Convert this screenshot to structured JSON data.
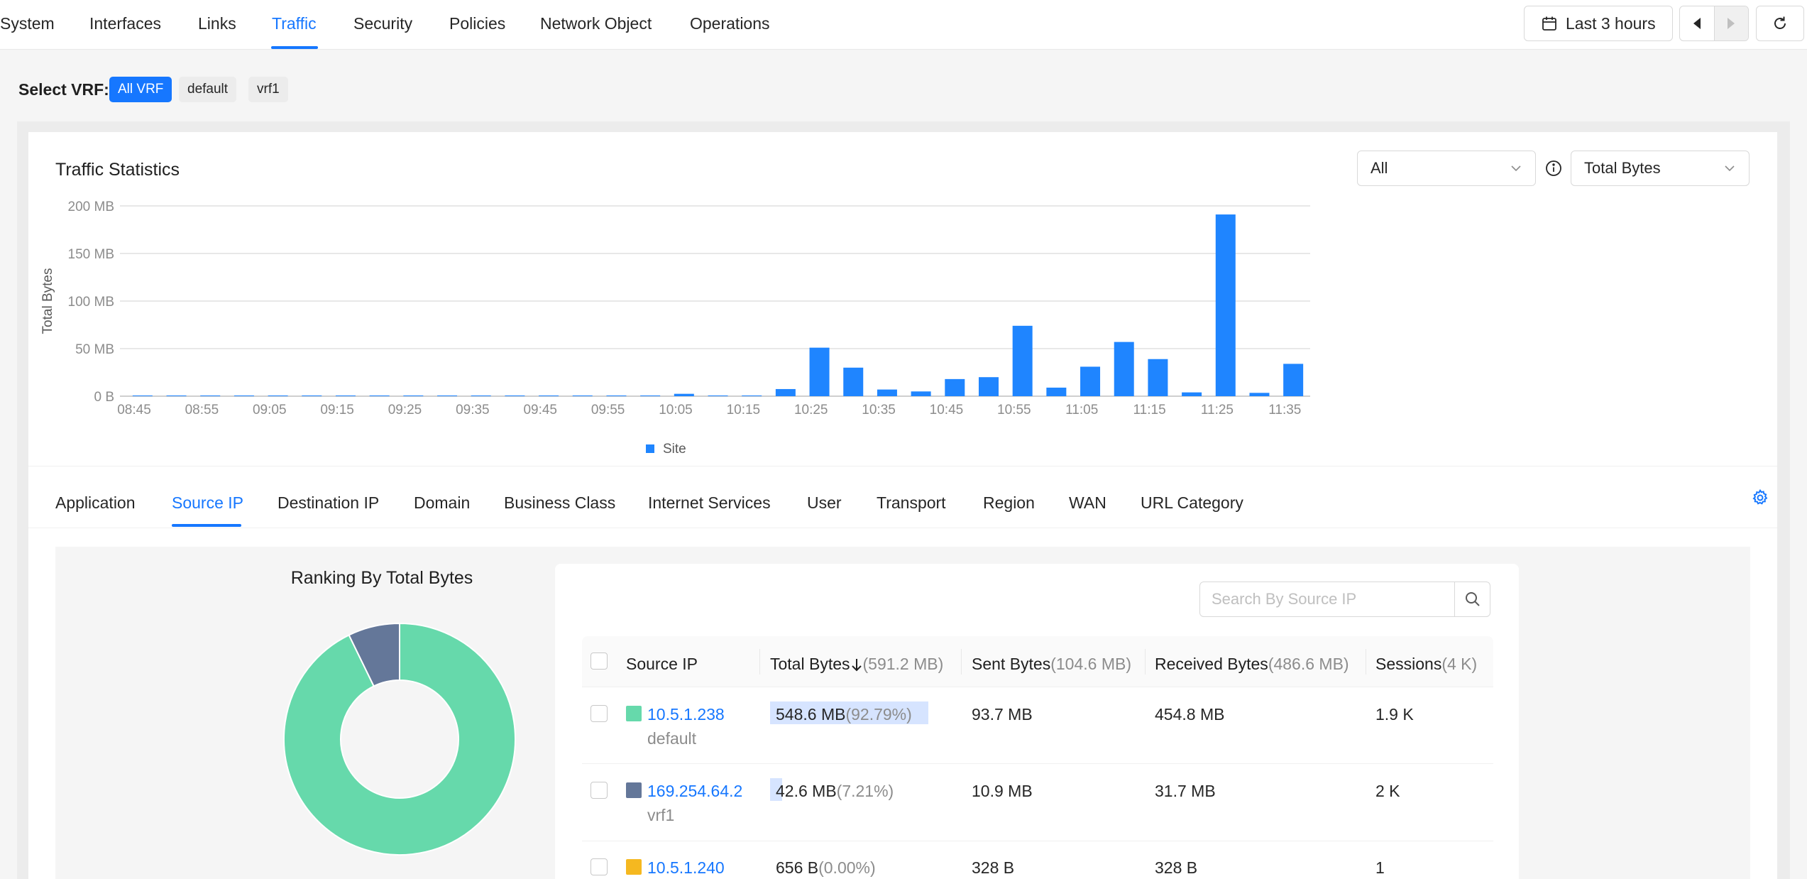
{
  "nav": {
    "tabs": [
      "System",
      "Interfaces",
      "Links",
      "Traffic",
      "Security",
      "Policies",
      "Network Object",
      "Operations"
    ],
    "active": "Traffic"
  },
  "toolbar": {
    "time_range": "Last 3 hours"
  },
  "vrf": {
    "label": "Select VRF:",
    "options": [
      "All VRF",
      "default",
      "vrf1"
    ],
    "selected": "All VRF"
  },
  "stats": {
    "title": "Traffic Statistics",
    "filter_select": "All",
    "metric_select": "Total Bytes"
  },
  "chart_data": {
    "type": "bar",
    "title": "Traffic Statistics",
    "ylabel": "Total Bytes",
    "ylim": [
      0,
      200
    ],
    "yunit": "MB",
    "yticks": [
      "0 B",
      "50 MB",
      "100 MB",
      "150 MB",
      "200 MB"
    ],
    "xticks": [
      "08:45",
      "08:55",
      "09:05",
      "09:15",
      "09:25",
      "09:35",
      "09:45",
      "09:55",
      "10:05",
      "10:15",
      "10:25",
      "10:35",
      "10:45",
      "10:55",
      "11:05",
      "11:15",
      "11:25",
      "11:35"
    ],
    "categories": [
      "08:45",
      "08:50",
      "08:55",
      "09:00",
      "09:05",
      "09:10",
      "09:15",
      "09:20",
      "09:25",
      "09:30",
      "09:35",
      "09:40",
      "09:45",
      "09:50",
      "09:55",
      "10:00",
      "10:05",
      "10:10",
      "10:15",
      "10:20",
      "10:25",
      "10:30",
      "10:35",
      "10:40",
      "10:45",
      "10:50",
      "10:55",
      "11:00",
      "11:05",
      "11:10",
      "11:15",
      "11:20",
      "11:25",
      "11:30",
      "11:35"
    ],
    "series": [
      {
        "name": "Site",
        "color": "#1f85ff",
        "values": [
          0.3,
          0.3,
          0.3,
          0.3,
          0.3,
          0.3,
          0.3,
          0.3,
          0.3,
          0.3,
          0.3,
          0.3,
          0.4,
          0.5,
          0.5,
          0.4,
          2.5,
          0.5,
          0.3,
          7.5,
          51,
          30,
          7,
          5,
          18,
          20,
          74,
          9,
          31,
          57,
          39,
          4,
          191,
          3.5,
          34
        ]
      }
    ],
    "legend": "bottom"
  },
  "subtabs": {
    "items": [
      "Application",
      "Source IP",
      "Destination IP",
      "Domain",
      "Business Class",
      "Internet Services",
      "User",
      "Transport",
      "Region",
      "WAN",
      "URL Category"
    ],
    "active": "Source IP"
  },
  "ranking": {
    "title": "Ranking By Total Bytes",
    "donut": [
      {
        "label": "10.5.1.238",
        "value": 92.79,
        "color": "#66d9ab"
      },
      {
        "label": "169.254.64.2",
        "value": 7.21,
        "color": "#647799"
      },
      {
        "label": "10.5.1.240",
        "value": 0.0,
        "color": "#f5b820"
      }
    ]
  },
  "table": {
    "search_placeholder": "Search By Source IP",
    "columns": {
      "source_ip": "Source IP",
      "total": "Total Bytes",
      "total_sum": "(591.2 MB)",
      "sent": "Sent Bytes",
      "sent_sum": "(104.6 MB)",
      "received": "Received Bytes",
      "received_sum": "(486.6 MB)",
      "sessions": "Sessions",
      "sessions_sum": "(4 K)"
    },
    "rows": [
      {
        "ip": "10.5.1.238",
        "vrf": "default",
        "color": "#66d9ab",
        "total": "548.6 MB",
        "pct": "(92.79%)",
        "share": 0.9279,
        "sent": "93.7 MB",
        "received": "454.8 MB",
        "sessions": "1.9 K"
      },
      {
        "ip": "169.254.64.2",
        "vrf": "vrf1",
        "color": "#647799",
        "total": "42.6 MB",
        "pct": "(7.21%)",
        "share": 0.0721,
        "sent": "10.9 MB",
        "received": "31.7 MB",
        "sessions": "2 K"
      },
      {
        "ip": "10.5.1.240",
        "vrf": "",
        "color": "#f5b820",
        "total": "656 B",
        "pct": "(0.00%)",
        "share": 0.0,
        "sent": "328 B",
        "received": "328 B",
        "sessions": "1"
      }
    ]
  }
}
